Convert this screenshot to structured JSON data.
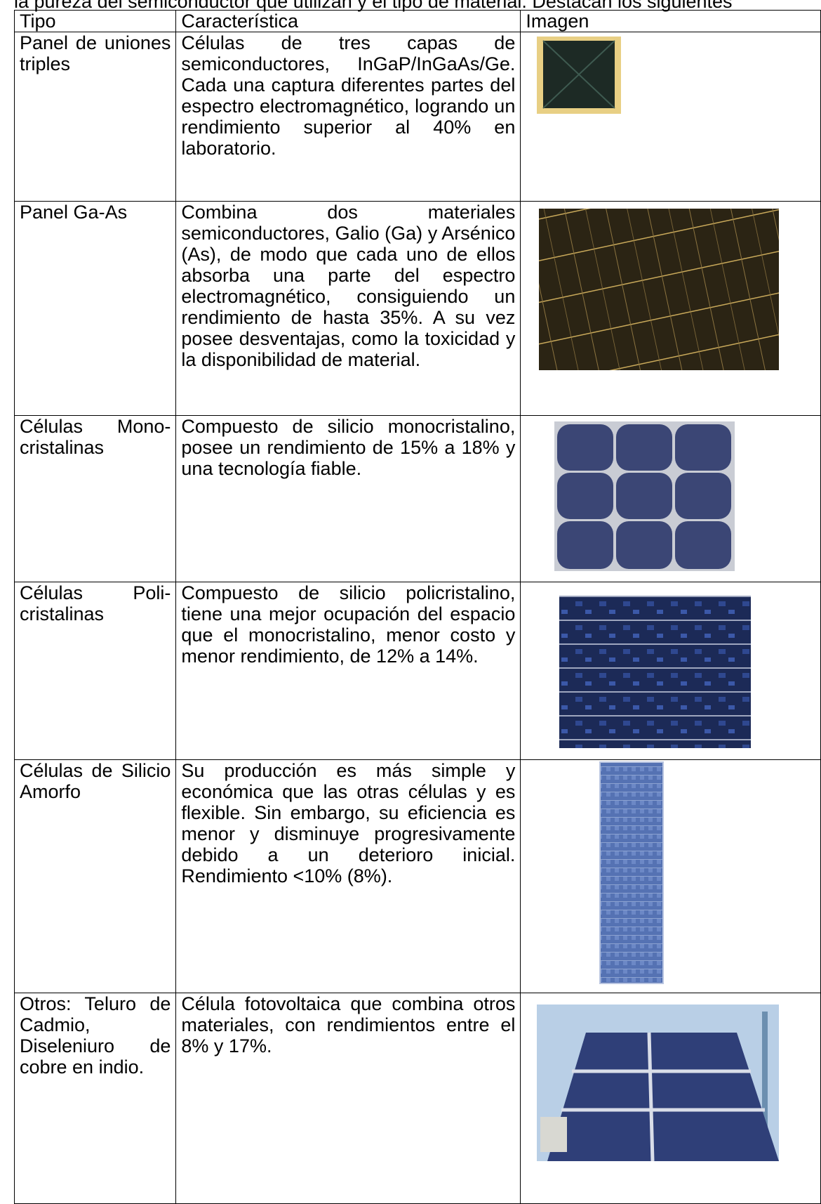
{
  "intro": "la pureza del semiconductor que utilizan y el tipo de material. Destacan los siguientes",
  "table": {
    "header": [
      "Tipo",
      "Característica",
      "Imagen"
    ],
    "rows": [
      [
        "Panel de uniones triples",
        "Células de tres capas de semiconductores, InGaP/InGaAs/Ge. Cada una captura diferentes partes del espectro electromagnético, logrando un rendimiento superior al 40% en laboratorio."
      ],
      [
        "Panel Ga-As",
        "Combina dos materiales semiconductores, Galio (Ga) y Arsénico (As), de modo que cada uno de ellos absorba una parte del espectro electromagnético, consiguiendo un rendimiento de hasta 35%. A su vez posee desventajas, como la toxicidad y la disponibilidad de material."
      ],
      [
        "Células Mono-cristalinas",
        "Compuesto de silicio monocristalino, posee un rendimiento de 15% a 18% y una tecnología fiable."
      ],
      [
        "Células Poli-cristalinas",
        "Compuesto de silicio policristalino, tiene una mejor ocupación del espacio que el monocristalino, menor costo y menor rendimiento, de 12% a 14%."
      ],
      [
        "Células de Silicio Amorfo",
        "Su producción es más simple y económica que las otras células y es flexible. Sin embargo, su eficiencia es menor y disminuye progresivamente debido a un deterioro inicial. Rendimiento <10% (8%)."
      ],
      [
        "Otros: Teluro de Cadmio, Diseleniuro de cobre en indio.",
        "Célula fotovoltaica que combina otros materiales, con rendimientos entre el 8% y 17%."
      ]
    ]
  }
}
